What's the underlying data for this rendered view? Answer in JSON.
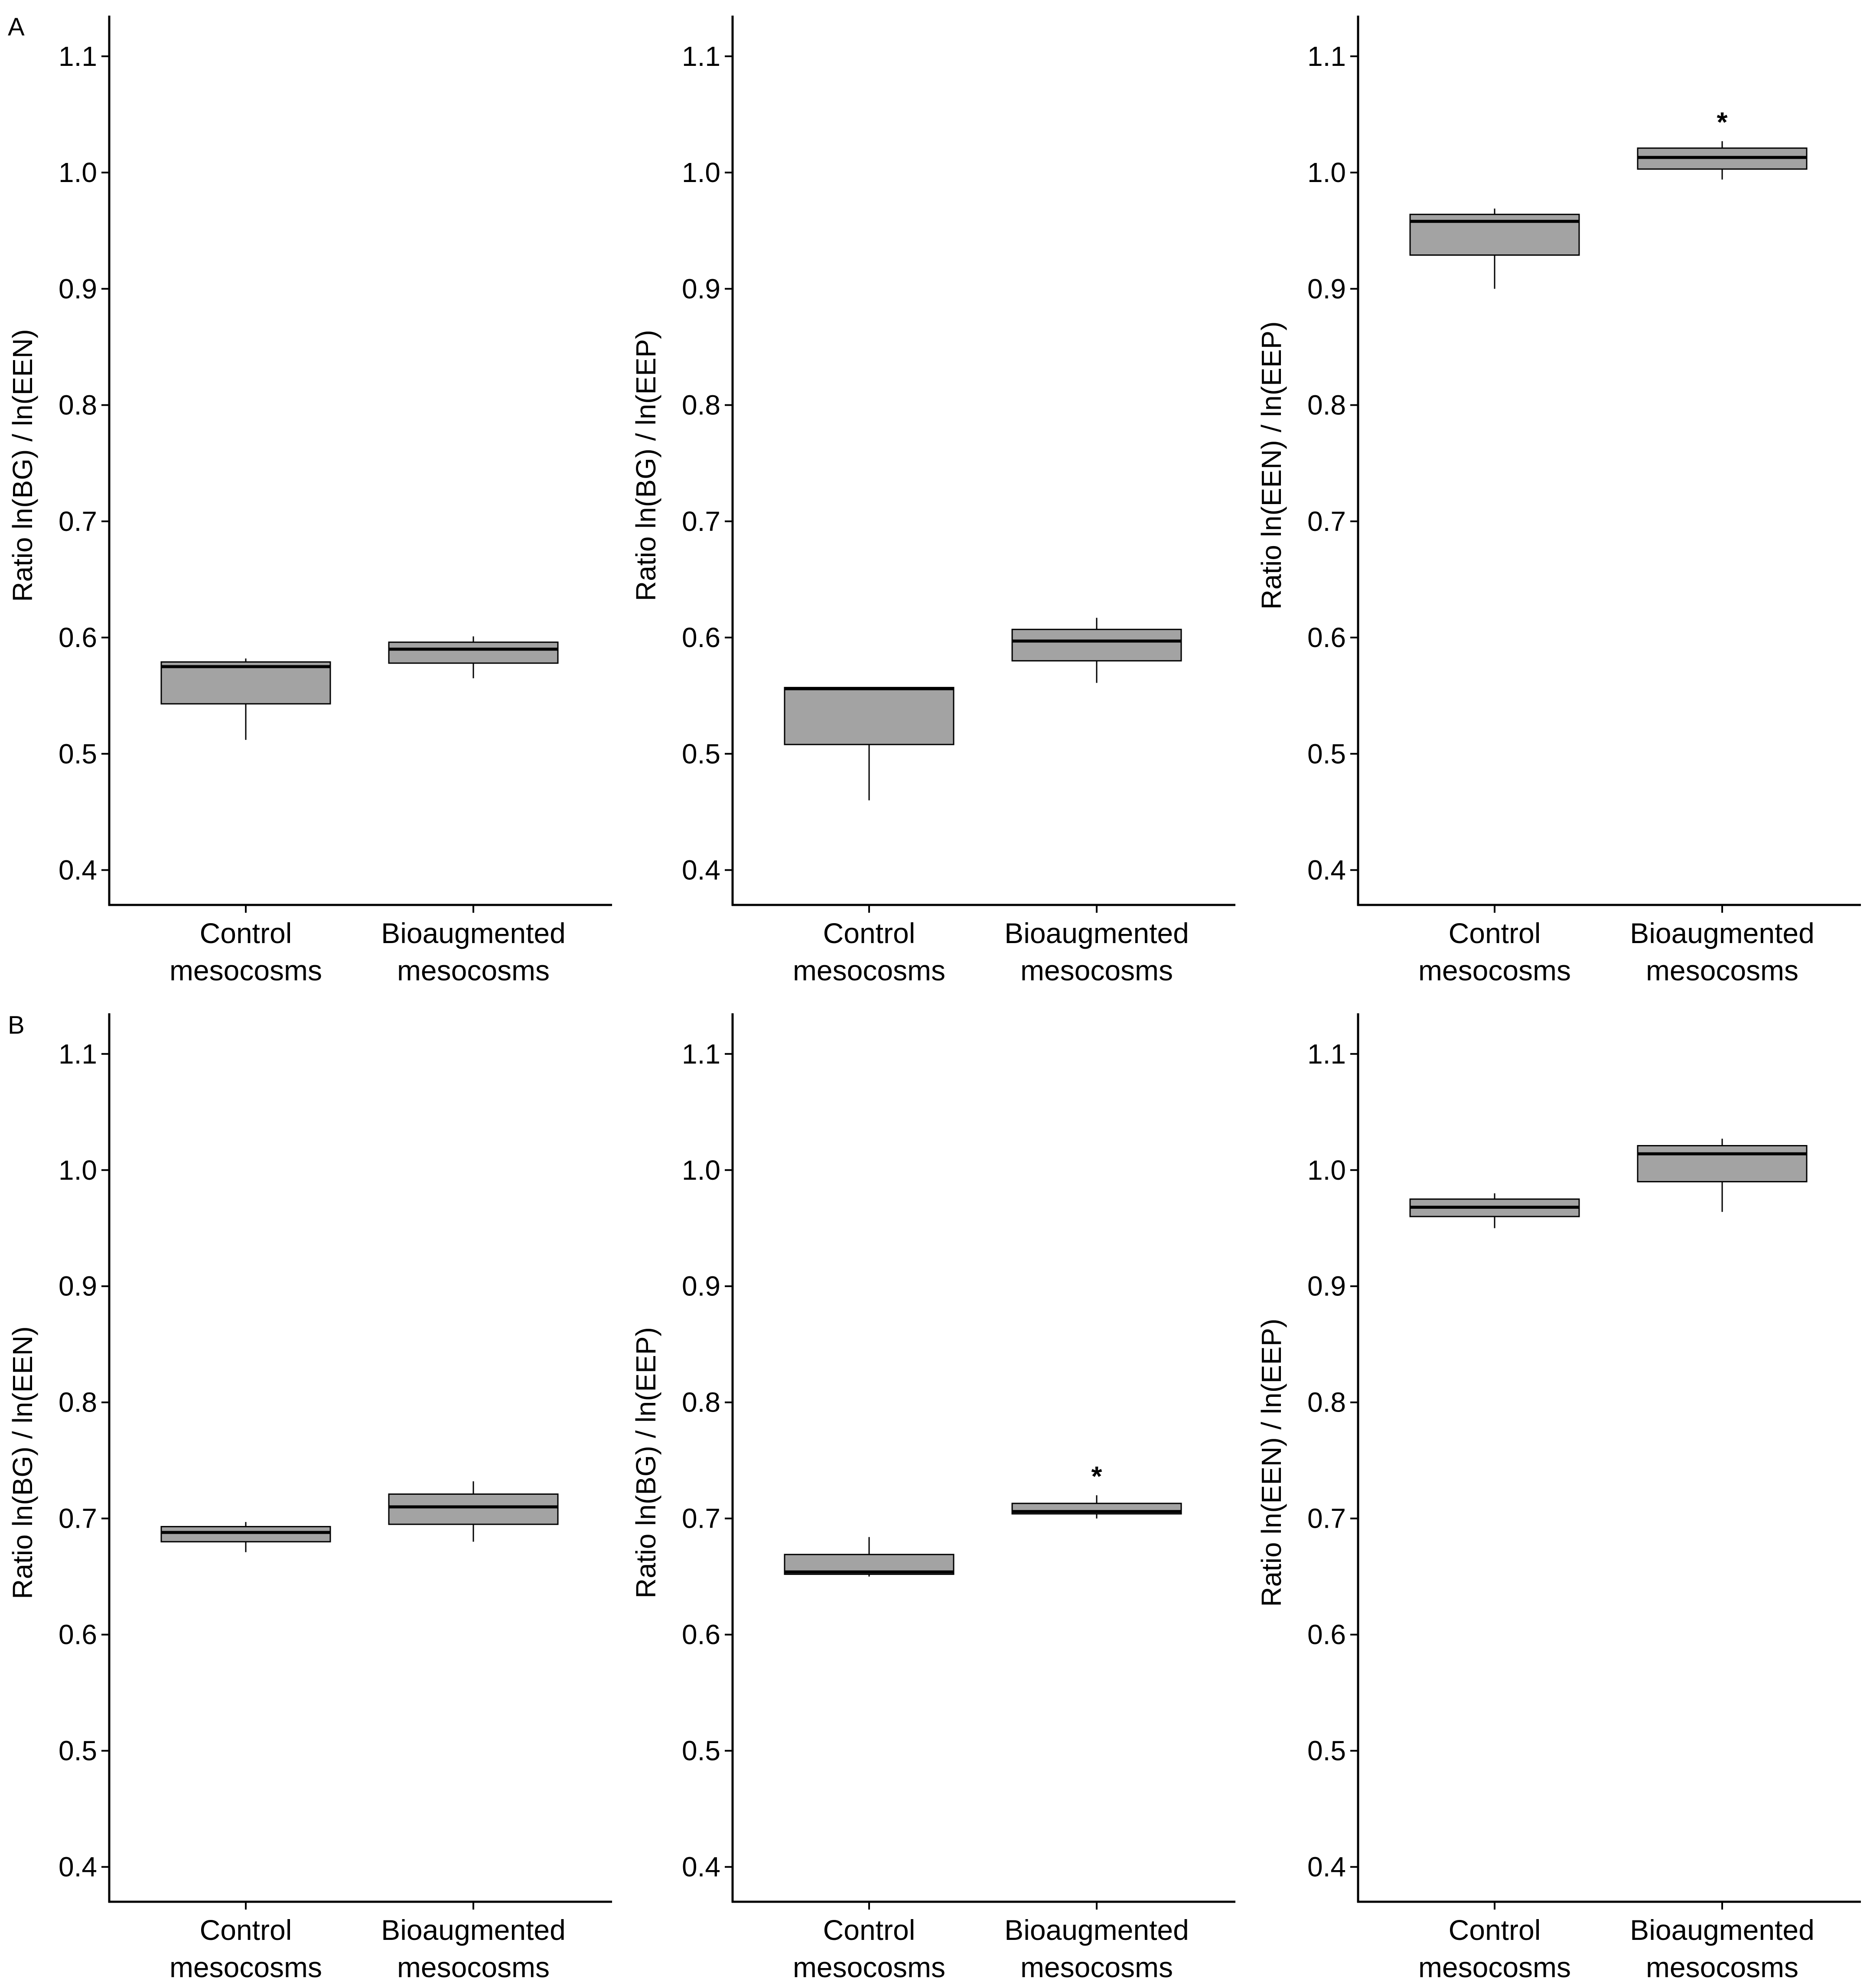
{
  "figure": {
    "panel_labels": [
      "A",
      "B"
    ]
  },
  "chart_data": [
    {
      "type": "box",
      "panel": "A",
      "position": "left",
      "ylabel": "Ratio ln(BG) / ln(EEN)",
      "ylim": [
        0.37,
        1.135
      ],
      "yticks": [
        0.4,
        0.5,
        0.6,
        0.7,
        0.8,
        0.9,
        1.0,
        1.1
      ],
      "ytick_labels": [
        "0.4",
        "0.5",
        "0.6",
        "0.7",
        "0.8",
        "0.9",
        "1.0",
        "1.1"
      ],
      "categories": [
        [
          "Control",
          "mesocosms"
        ],
        [
          "Bioaugmented",
          "mesocosms"
        ]
      ],
      "boxes": [
        {
          "whisker_low": 0.512,
          "q1": 0.543,
          "median": 0.575,
          "q3": 0.579,
          "whisker_high": 0.582,
          "significant": false
        },
        {
          "whisker_low": 0.565,
          "q1": 0.578,
          "median": 0.59,
          "q3": 0.596,
          "whisker_high": 0.601,
          "significant": false
        }
      ]
    },
    {
      "type": "box",
      "panel": "A",
      "position": "middle",
      "ylabel": "Ratio ln(BG) / ln(EEP)",
      "ylim": [
        0.37,
        1.135
      ],
      "yticks": [
        0.4,
        0.5,
        0.6,
        0.7,
        0.8,
        0.9,
        1.0,
        1.1
      ],
      "ytick_labels": [
        "0.4",
        "0.5",
        "0.6",
        "0.7",
        "0.8",
        "0.9",
        "1.0",
        "1.1"
      ],
      "categories": [
        [
          "Control",
          "mesocosms"
        ],
        [
          "Bioaugmented",
          "mesocosms"
        ]
      ],
      "boxes": [
        {
          "whisker_low": 0.46,
          "q1": 0.508,
          "median": 0.556,
          "q3": 0.557,
          "whisker_high": 0.557,
          "significant": false
        },
        {
          "whisker_low": 0.561,
          "q1": 0.58,
          "median": 0.597,
          "q3": 0.607,
          "whisker_high": 0.617,
          "significant": false
        }
      ]
    },
    {
      "type": "box",
      "panel": "A",
      "position": "right",
      "ylabel": "Ratio ln(EEN) / ln(EEP)",
      "ylim": [
        0.37,
        1.135
      ],
      "yticks": [
        0.4,
        0.5,
        0.6,
        0.7,
        0.8,
        0.9,
        1.0,
        1.1
      ],
      "ytick_labels": [
        "0.4",
        "0.5",
        "0.6",
        "0.7",
        "0.8",
        "0.9",
        "1.0",
        "1.1"
      ],
      "categories": [
        [
          "Control",
          "mesocosms"
        ],
        [
          "Bioaugmented",
          "mesocosms"
        ]
      ],
      "boxes": [
        {
          "whisker_low": 0.9,
          "q1": 0.929,
          "median": 0.958,
          "q3": 0.964,
          "whisker_high": 0.969,
          "significant": false
        },
        {
          "whisker_low": 0.994,
          "q1": 1.003,
          "median": 1.013,
          "q3": 1.021,
          "whisker_high": 1.027,
          "significant": true
        }
      ],
      "significance_marker": "*"
    },
    {
      "type": "box",
      "panel": "B",
      "position": "left",
      "ylabel": "Ratio ln(BG) / ln(EEN)",
      "ylim": [
        0.37,
        1.135
      ],
      "yticks": [
        0.4,
        0.5,
        0.6,
        0.7,
        0.8,
        0.9,
        1.0,
        1.1
      ],
      "ytick_labels": [
        "0.4",
        "0.5",
        "0.6",
        "0.7",
        "0.8",
        "0.9",
        "1.0",
        "1.1"
      ],
      "categories": [
        [
          "Control",
          "mesocosms"
        ],
        [
          "Bioaugmented",
          "mesocosms"
        ]
      ],
      "boxes": [
        {
          "whisker_low": 0.671,
          "q1": 0.68,
          "median": 0.688,
          "q3": 0.693,
          "whisker_high": 0.697,
          "significant": false
        },
        {
          "whisker_low": 0.68,
          "q1": 0.695,
          "median": 0.71,
          "q3": 0.721,
          "whisker_high": 0.732,
          "significant": false
        }
      ]
    },
    {
      "type": "box",
      "panel": "B",
      "position": "middle",
      "ylabel": "Ratio ln(BG) / ln(EEP)",
      "ylim": [
        0.37,
        1.135
      ],
      "yticks": [
        0.4,
        0.5,
        0.6,
        0.7,
        0.8,
        0.9,
        1.0,
        1.1
      ],
      "ytick_labels": [
        "0.4",
        "0.5",
        "0.6",
        "0.7",
        "0.8",
        "0.9",
        "1.0",
        "1.1"
      ],
      "categories": [
        [
          "Control",
          "mesocosms"
        ],
        [
          "Bioaugmented",
          "mesocosms"
        ]
      ],
      "boxes": [
        {
          "whisker_low": 0.65,
          "q1": 0.652,
          "median": 0.654,
          "q3": 0.669,
          "whisker_high": 0.684,
          "significant": false
        },
        {
          "whisker_low": 0.7,
          "q1": 0.704,
          "median": 0.706,
          "q3": 0.713,
          "whisker_high": 0.72,
          "significant": true
        }
      ],
      "significance_marker": "*"
    },
    {
      "type": "box",
      "panel": "B",
      "position": "right",
      "ylabel": "Ratio ln(EEN) / ln(EEP)",
      "ylim": [
        0.37,
        1.135
      ],
      "yticks": [
        0.4,
        0.5,
        0.6,
        0.7,
        0.8,
        0.9,
        1.0,
        1.1
      ],
      "ytick_labels": [
        "0.4",
        "0.5",
        "0.6",
        "0.7",
        "0.8",
        "0.9",
        "1.0",
        "1.1"
      ],
      "categories": [
        [
          "Control",
          "mesocosms"
        ],
        [
          "Bioaugmented",
          "mesocosms"
        ]
      ],
      "boxes": [
        {
          "whisker_low": 0.95,
          "q1": 0.96,
          "median": 0.968,
          "q3": 0.975,
          "whisker_high": 0.98,
          "significant": false
        },
        {
          "whisker_low": 0.964,
          "q1": 0.99,
          "median": 1.014,
          "q3": 1.021,
          "whisker_high": 1.027,
          "significant": false
        }
      ]
    }
  ]
}
